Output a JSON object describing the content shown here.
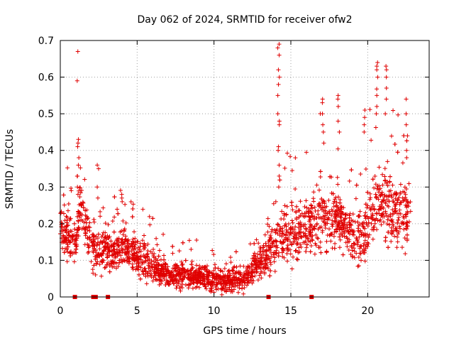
{
  "chart_data": {
    "type": "scatter",
    "title": "Day 062 of 2024, SRMTID for receiver ofw2",
    "xlabel": "GPS time / hours",
    "ylabel": "SRMTID / TECUs",
    "xlim": [
      0,
      24
    ],
    "ylim": [
      0,
      0.7
    ],
    "xticks": [
      0,
      5,
      10,
      15,
      20
    ],
    "yticks": [
      0,
      0.1,
      0.2,
      0.3,
      0.4,
      0.5,
      0.6,
      0.7
    ],
    "grid": true,
    "color": "#e00000",
    "marker": "+",
    "profile": [
      [
        0.0,
        0.19
      ],
      [
        0.5,
        0.17
      ],
      [
        1.0,
        0.14
      ],
      [
        1.3,
        0.25
      ],
      [
        1.7,
        0.18
      ],
      [
        2.0,
        0.14
      ],
      [
        2.5,
        0.12
      ],
      [
        3.0,
        0.13
      ],
      [
        3.5,
        0.12
      ],
      [
        4.0,
        0.14
      ],
      [
        4.5,
        0.13
      ],
      [
        5.0,
        0.11
      ],
      [
        5.5,
        0.09
      ],
      [
        6.0,
        0.08
      ],
      [
        7.0,
        0.065
      ],
      [
        8.0,
        0.06
      ],
      [
        9.0,
        0.06
      ],
      [
        10.0,
        0.05
      ],
      [
        11.0,
        0.045
      ],
      [
        12.0,
        0.05
      ],
      [
        12.5,
        0.07
      ],
      [
        13.0,
        0.09
      ],
      [
        13.5,
        0.12
      ],
      [
        14.0,
        0.15
      ],
      [
        14.5,
        0.17
      ],
      [
        15.0,
        0.17
      ],
      [
        15.5,
        0.19
      ],
      [
        16.0,
        0.2
      ],
      [
        16.5,
        0.2
      ],
      [
        17.0,
        0.21
      ],
      [
        17.5,
        0.2
      ],
      [
        18.0,
        0.21
      ],
      [
        18.5,
        0.19
      ],
      [
        19.0,
        0.17
      ],
      [
        19.5,
        0.15
      ],
      [
        20.0,
        0.2
      ],
      [
        20.5,
        0.25
      ],
      [
        21.0,
        0.26
      ],
      [
        21.5,
        0.24
      ],
      [
        22.0,
        0.22
      ],
      [
        22.5,
        0.22
      ],
      [
        22.8,
        0.21
      ]
    ],
    "spread": [
      [
        0.0,
        0.05
      ],
      [
        2.0,
        0.06
      ],
      [
        5.0,
        0.05
      ],
      [
        7.0,
        0.03
      ],
      [
        10.0,
        0.03
      ],
      [
        12.0,
        0.03
      ],
      [
        13.5,
        0.05
      ],
      [
        15.0,
        0.07
      ],
      [
        17.0,
        0.08
      ],
      [
        19.0,
        0.06
      ],
      [
        20.0,
        0.08
      ],
      [
        21.0,
        0.1
      ],
      [
        22.8,
        0.08
      ]
    ],
    "spikes": [
      {
        "x": 1.15,
        "values": [
          0.67,
          0.59,
          0.42,
          0.41,
          0.43,
          0.38,
          0.36,
          0.33,
          0.3,
          0.28
        ]
      },
      {
        "x": 2.45,
        "values": [
          0.36,
          0.35,
          0.3,
          0.27
        ]
      },
      {
        "x": 4.0,
        "values": [
          0.28,
          0.27,
          0.26
        ]
      },
      {
        "x": 14.2,
        "values": [
          0.69,
          0.68,
          0.66,
          0.62,
          0.6,
          0.58,
          0.55,
          0.5,
          0.48,
          0.47,
          0.41,
          0.4,
          0.36,
          0.33,
          0.3
        ]
      },
      {
        "x": 17.1,
        "values": [
          0.54,
          0.53,
          0.5,
          0.47,
          0.45,
          0.42
        ]
      },
      {
        "x": 18.1,
        "values": [
          0.55,
          0.54,
          0.52,
          0.48,
          0.45
        ]
      },
      {
        "x": 19.8,
        "values": [
          0.51,
          0.49,
          0.47,
          0.45
        ]
      },
      {
        "x": 20.6,
        "values": [
          0.64,
          0.63,
          0.62,
          0.6,
          0.55,
          0.52,
          0.5
        ]
      },
      {
        "x": 21.2,
        "values": [
          0.63,
          0.62,
          0.6,
          0.57,
          0.54,
          0.5
        ]
      },
      {
        "x": 22.55,
        "values": [
          0.54,
          0.5,
          0.47,
          0.44,
          0.4,
          0.38
        ]
      }
    ],
    "zero_values_x": [
      0.95,
      2.15,
      2.3,
      3.1,
      13.55,
      16.35
    ]
  }
}
